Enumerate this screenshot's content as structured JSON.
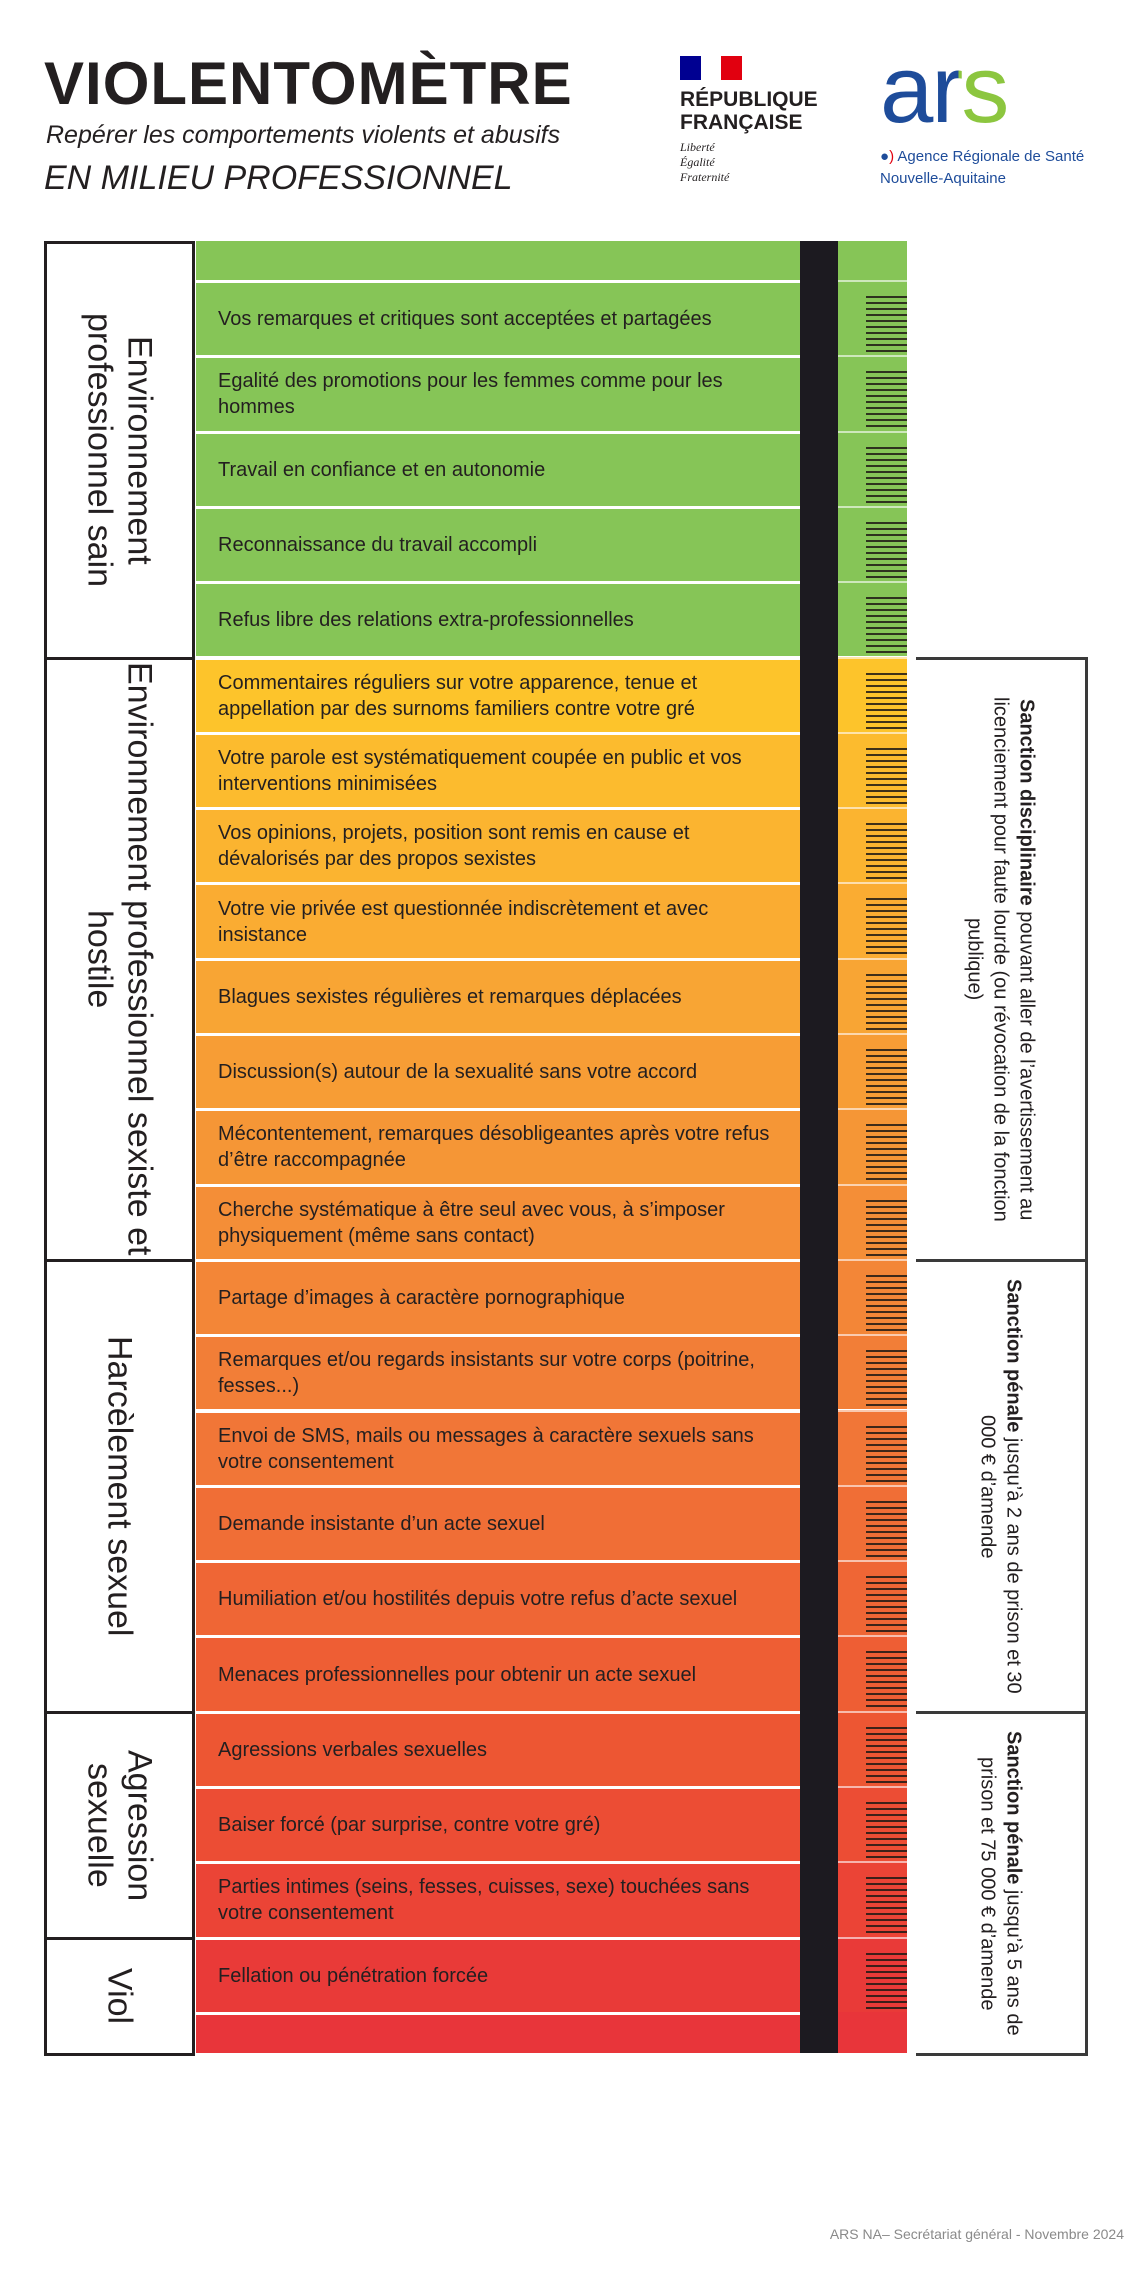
{
  "header": {
    "title": "VIOLENTOMÈTRE",
    "subtitle": "Repérer les comportements violents et abusifs",
    "subtitle2": "EN MILIEU PROFESSIONNEL"
  },
  "logos": {
    "rf": {
      "line1": "RÉPUBLIQUE",
      "line2": "FRANÇAISE",
      "motto1": "Liberté",
      "motto2": "Égalité",
      "motto3": "Fraternité"
    },
    "ars": {
      "letters": "ars",
      "agency": "Agence Régionale de Santé",
      "region": "Nouvelle-Aquitaine",
      "blue": "#1e4c9a",
      "green": "#8cc63f"
    }
  },
  "sections": [
    {
      "label": "Environnement professionnel sain",
      "rows": [
        1,
        5
      ]
    },
    {
      "label": "Environnement professionnel sexiste et hostile",
      "rows": [
        6,
        13
      ]
    },
    {
      "label": "Harcèlement sexuel",
      "rows": [
        14,
        19
      ]
    },
    {
      "label": "Agression sexuelle",
      "rows": [
        20,
        22
      ]
    },
    {
      "label": "Viol",
      "rows": [
        23,
        23
      ]
    }
  ],
  "rows": [
    {
      "text": "Vos remarques et critiques sont acceptées et partagées",
      "color": "#86c557"
    },
    {
      "text": "Egalité des promotions pour les femmes comme pour les hommes",
      "color": "#86c557"
    },
    {
      "text": "Travail en confiance et en autonomie",
      "color": "#86c557"
    },
    {
      "text": "Reconnaissance du travail accompli",
      "color": "#86c557"
    },
    {
      "text": "Refus libre des relations extra-professionnelles",
      "color": "#86c557"
    },
    {
      "text": "Commentaires réguliers sur votre apparence, tenue et appellation par des surnoms familiers contre votre gré",
      "color": "#fdc42b"
    },
    {
      "text": "Votre parole est systématiquement coupée en public et vos interventions minimisées",
      "color": "#fcbb2e"
    },
    {
      "text": "Vos opinions, projets, position sont remis en cause et dévalorisés par des propos sexistes",
      "color": "#fbb430"
    },
    {
      "text": "Votre vie privée est questionnée indiscrètement et avec insistance",
      "color": "#faac32"
    },
    {
      "text": "Blagues sexistes régulières et remarques déplacées",
      "color": "#f8a534"
    },
    {
      "text": "Discussion(s) autour de la sexualité sans votre accord",
      "color": "#f79d35"
    },
    {
      "text": "Mécontentement, remarques désobligeantes après votre refus d’être raccompagnée",
      "color": "#f59636"
    },
    {
      "text": "Cherche systématique à être seul avec vous, à s’imposer physiquement (même sans contact)",
      "color": "#f48e37"
    },
    {
      "text": "Partage d’images à caractère pornographique",
      "color": "#f38637"
    },
    {
      "text": "Remarques et/ou regards insistants sur votre corps (poitrine, fesses...)",
      "color": "#f27e37"
    },
    {
      "text": "Envoi de SMS, mails ou messages à caractère sexuels sans votre consentement",
      "color": "#f17637"
    },
    {
      "text": "Demande insistante d’un acte sexuel",
      "color": "#f06e36"
    },
    {
      "text": "Humiliation et/ou hostilités depuis votre refus d’acte sexuel",
      "color": "#ef6635"
    },
    {
      "text": "Menaces professionnelles pour obtenir un acte sexuel",
      "color": "#ee5e34"
    },
    {
      "text": "Agressions verbales sexuelles",
      "color": "#ed5633"
    },
    {
      "text": "Baiser forcé (par surprise, contre votre gré)",
      "color": "#ec4d34"
    },
    {
      "text": "Parties intimes (seins, fesses, cuisses, sexe) touchées sans votre consentement",
      "color": "#eb4436"
    },
    {
      "text": "Fellation ou pénétration forcée",
      "color": "#e93a38"
    }
  ],
  "top_color": "#86c557",
  "bottom_color": "#e8353a",
  "scale": [
    "1",
    "2",
    "3",
    "4",
    "5",
    "6",
    "7",
    "8",
    "9",
    "10",
    "11",
    "12",
    "13",
    "14",
    "15",
    "16",
    "17",
    "18",
    "19",
    "20",
    "21",
    "22",
    "23",
    "24"
  ],
  "sanctions": [
    {
      "bold": "Sanction disciplinaire",
      "text": " pouvant aller de l’avertissement au licenciement pour faute lourde (ou révocation de la fonction publique)",
      "rows": [
        6,
        13
      ]
    },
    {
      "bold": "Sanction pénale",
      "text": " jusqu’à 2 ans de prison et 30 000 € d’amende",
      "rows": [
        14,
        19
      ]
    },
    {
      "bold": "Sanction pénale",
      "text": " jusqu’à 5 ans de prison et 75 000 € d’amende",
      "rows": [
        20,
        23
      ]
    }
  ],
  "footer": "ARS NA– Secrétariat général - Novembre 2024"
}
